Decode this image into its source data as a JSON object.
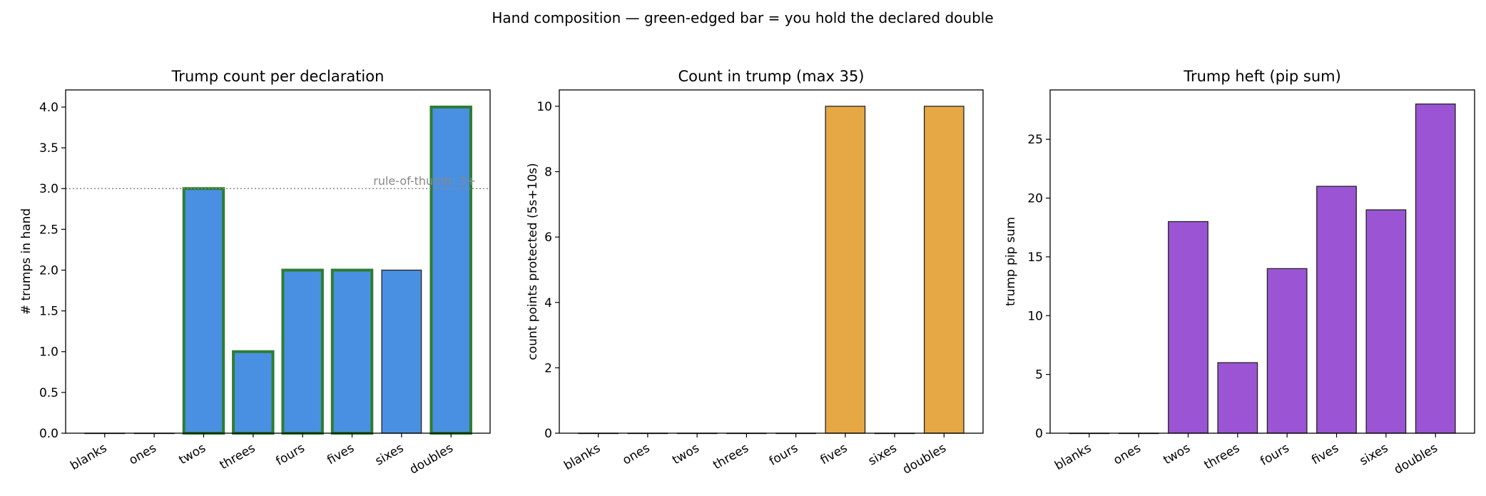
{
  "suptitle": "Hand composition — green-edged bar = you hold the declared double",
  "colors": {
    "held_edge": "#2e7d32",
    "default_edge": "#222222"
  },
  "chart_data": [
    {
      "type": "bar",
      "title": "Trump count per declaration",
      "xlabel": "",
      "ylabel": "# trumps in hand",
      "categories": [
        "blanks",
        "ones",
        "twos",
        "threes",
        "fours",
        "fives",
        "sixes",
        "doubles"
      ],
      "values": [
        0,
        0,
        3,
        1,
        2,
        2,
        2,
        4
      ],
      "held_double": [
        false,
        false,
        true,
        true,
        true,
        true,
        false,
        true
      ],
      "ylim": [
        0,
        4.21
      ],
      "yticks": [
        0,
        0.5,
        1,
        1.5,
        2,
        2.5,
        3,
        3.5,
        4
      ],
      "ytick_labels": [
        "0.0",
        "0.5",
        "1.0",
        "1.5",
        "2.0",
        "2.5",
        "3.0",
        "3.5",
        "4.0"
      ],
      "color": "#4a90e2",
      "reference_line": {
        "y": 3,
        "label": "rule-of-thumb: 3+"
      },
      "grid": false
    },
    {
      "type": "bar",
      "title": "Count in trump (max 35)",
      "xlabel": "",
      "ylabel": "count points protected (5s+10s)",
      "categories": [
        "blanks",
        "ones",
        "twos",
        "threes",
        "fours",
        "fives",
        "sixes",
        "doubles"
      ],
      "values": [
        0,
        0,
        0,
        0,
        0,
        10,
        0,
        10
      ],
      "ylim": [
        0,
        10.5
      ],
      "yticks": [
        0,
        2,
        4,
        6,
        8,
        10
      ],
      "ytick_labels": [
        "0",
        "2",
        "4",
        "6",
        "8",
        "10"
      ],
      "color": "#e5a845",
      "grid": false
    },
    {
      "type": "bar",
      "title": "Trump heft (pip sum)",
      "xlabel": "",
      "ylabel": "trump pip sum",
      "categories": [
        "blanks",
        "ones",
        "twos",
        "threes",
        "fours",
        "fives",
        "sixes",
        "doubles"
      ],
      "values": [
        0,
        0,
        18,
        6,
        14,
        21,
        19,
        28
      ],
      "ylim": [
        0,
        29.2
      ],
      "yticks": [
        0,
        5,
        10,
        15,
        20,
        25
      ],
      "ytick_labels": [
        "0",
        "5",
        "10",
        "15",
        "20",
        "25"
      ],
      "color": "#9b55d4",
      "grid": false
    }
  ]
}
